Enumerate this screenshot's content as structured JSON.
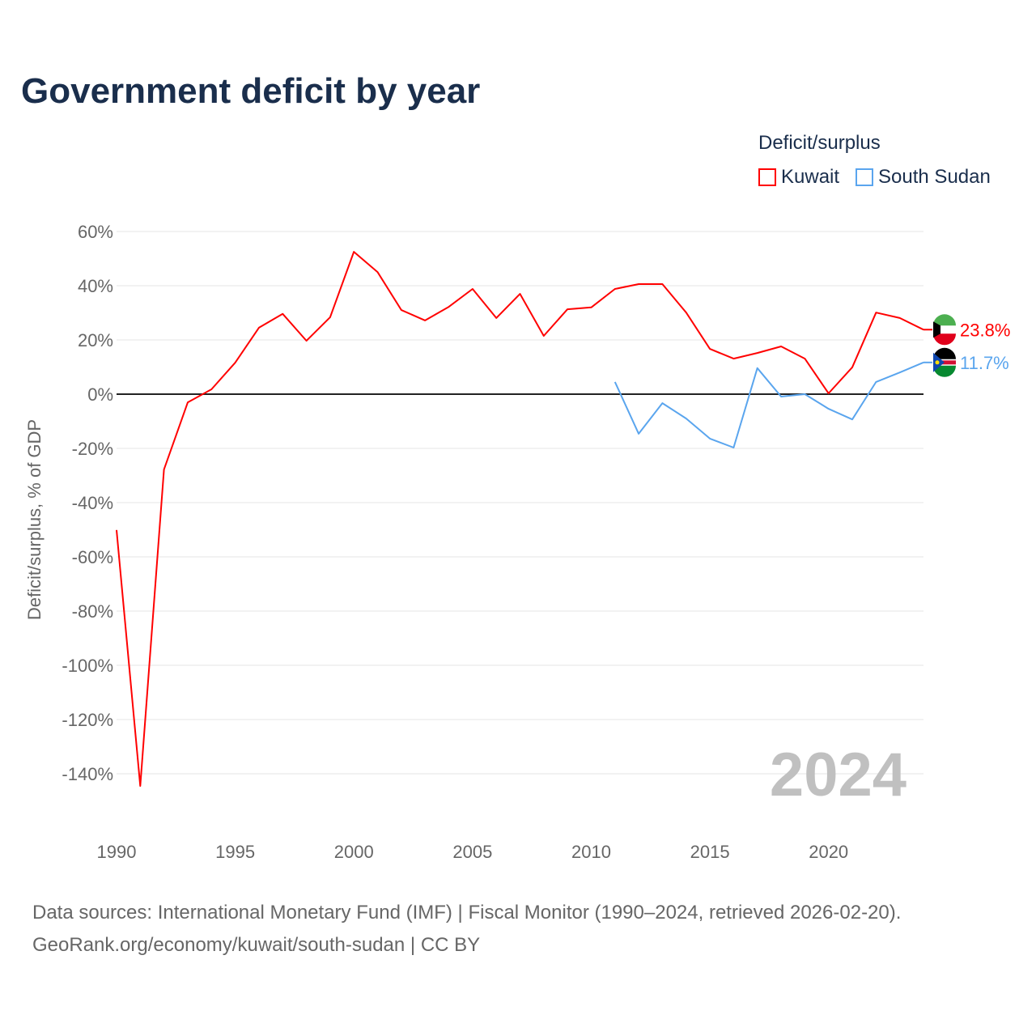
{
  "title": "Government deficit by year",
  "legend": {
    "title": "Deficit/surplus",
    "items": [
      "Kuwait",
      "South Sudan"
    ]
  },
  "watermark_year": "2024",
  "source_line1": "Data sources: International Monetary Fund (IMF) | Fiscal Monitor (1990–2024, retrieved 2026-02-20).",
  "source_line2": "GeoRank.org/economy/kuwait/south-sudan | CC BY",
  "chart_data": {
    "type": "line",
    "title": "Government deficit by year",
    "xlabel": "",
    "ylabel": "Deficit/surplus, % of GDP",
    "xlim": [
      1990,
      2024
    ],
    "ylim": [
      -150,
      60
    ],
    "yticks": [
      60,
      40,
      20,
      0,
      -20,
      -40,
      -60,
      -80,
      -100,
      -120,
      -140
    ],
    "ytick_labels": [
      "60%",
      "40%",
      "20%",
      "0%",
      "-20%",
      "-40%",
      "-60%",
      "-80%",
      "-100%",
      "-120%",
      "-140%"
    ],
    "xticks": [
      1990,
      1995,
      2000,
      2005,
      2010,
      2015,
      2020
    ],
    "xtick_labels": [
      "1990",
      "1995",
      "2000",
      "2005",
      "2010",
      "2015",
      "2020"
    ],
    "grid": true,
    "legend_position": "top-right",
    "series": [
      {
        "name": "Kuwait",
        "color": "#ff0000",
        "end_label": "23.8%",
        "x": [
          1990,
          1991,
          1992,
          1993,
          1994,
          1995,
          1996,
          1997,
          1998,
          1999,
          2000,
          2001,
          2002,
          2003,
          2004,
          2005,
          2006,
          2007,
          2008,
          2009,
          2010,
          2011,
          2012,
          2013,
          2014,
          2015,
          2016,
          2017,
          2018,
          2019,
          2020,
          2021,
          2022,
          2023,
          2024
        ],
        "values": [
          -50.1,
          -144.5,
          -27.8,
          -3,
          1.8,
          11.6,
          24.5,
          29.6,
          19.7,
          28.4,
          52.5,
          45,
          31,
          27.2,
          32.2,
          38.8,
          28.1,
          37,
          21.5,
          31.3,
          32,
          38.8,
          40.6,
          40.6,
          30.1,
          16.7,
          13.1,
          15.2,
          17.6,
          13.1,
          0.3,
          9.9,
          30.1,
          28.1,
          23.8
        ]
      },
      {
        "name": "South Sudan",
        "color": "#5aa5ee",
        "end_label": "11.7%",
        "x": [
          2011,
          2012,
          2013,
          2014,
          2015,
          2016,
          2017,
          2018,
          2019,
          2020,
          2021,
          2022,
          2023,
          2024
        ],
        "values": [
          4.5,
          -14.6,
          -3.3,
          -9,
          -16.4,
          -19.7,
          9.6,
          -0.9,
          0,
          -5.4,
          -9.3,
          4.5,
          8,
          11.7
        ]
      }
    ]
  }
}
